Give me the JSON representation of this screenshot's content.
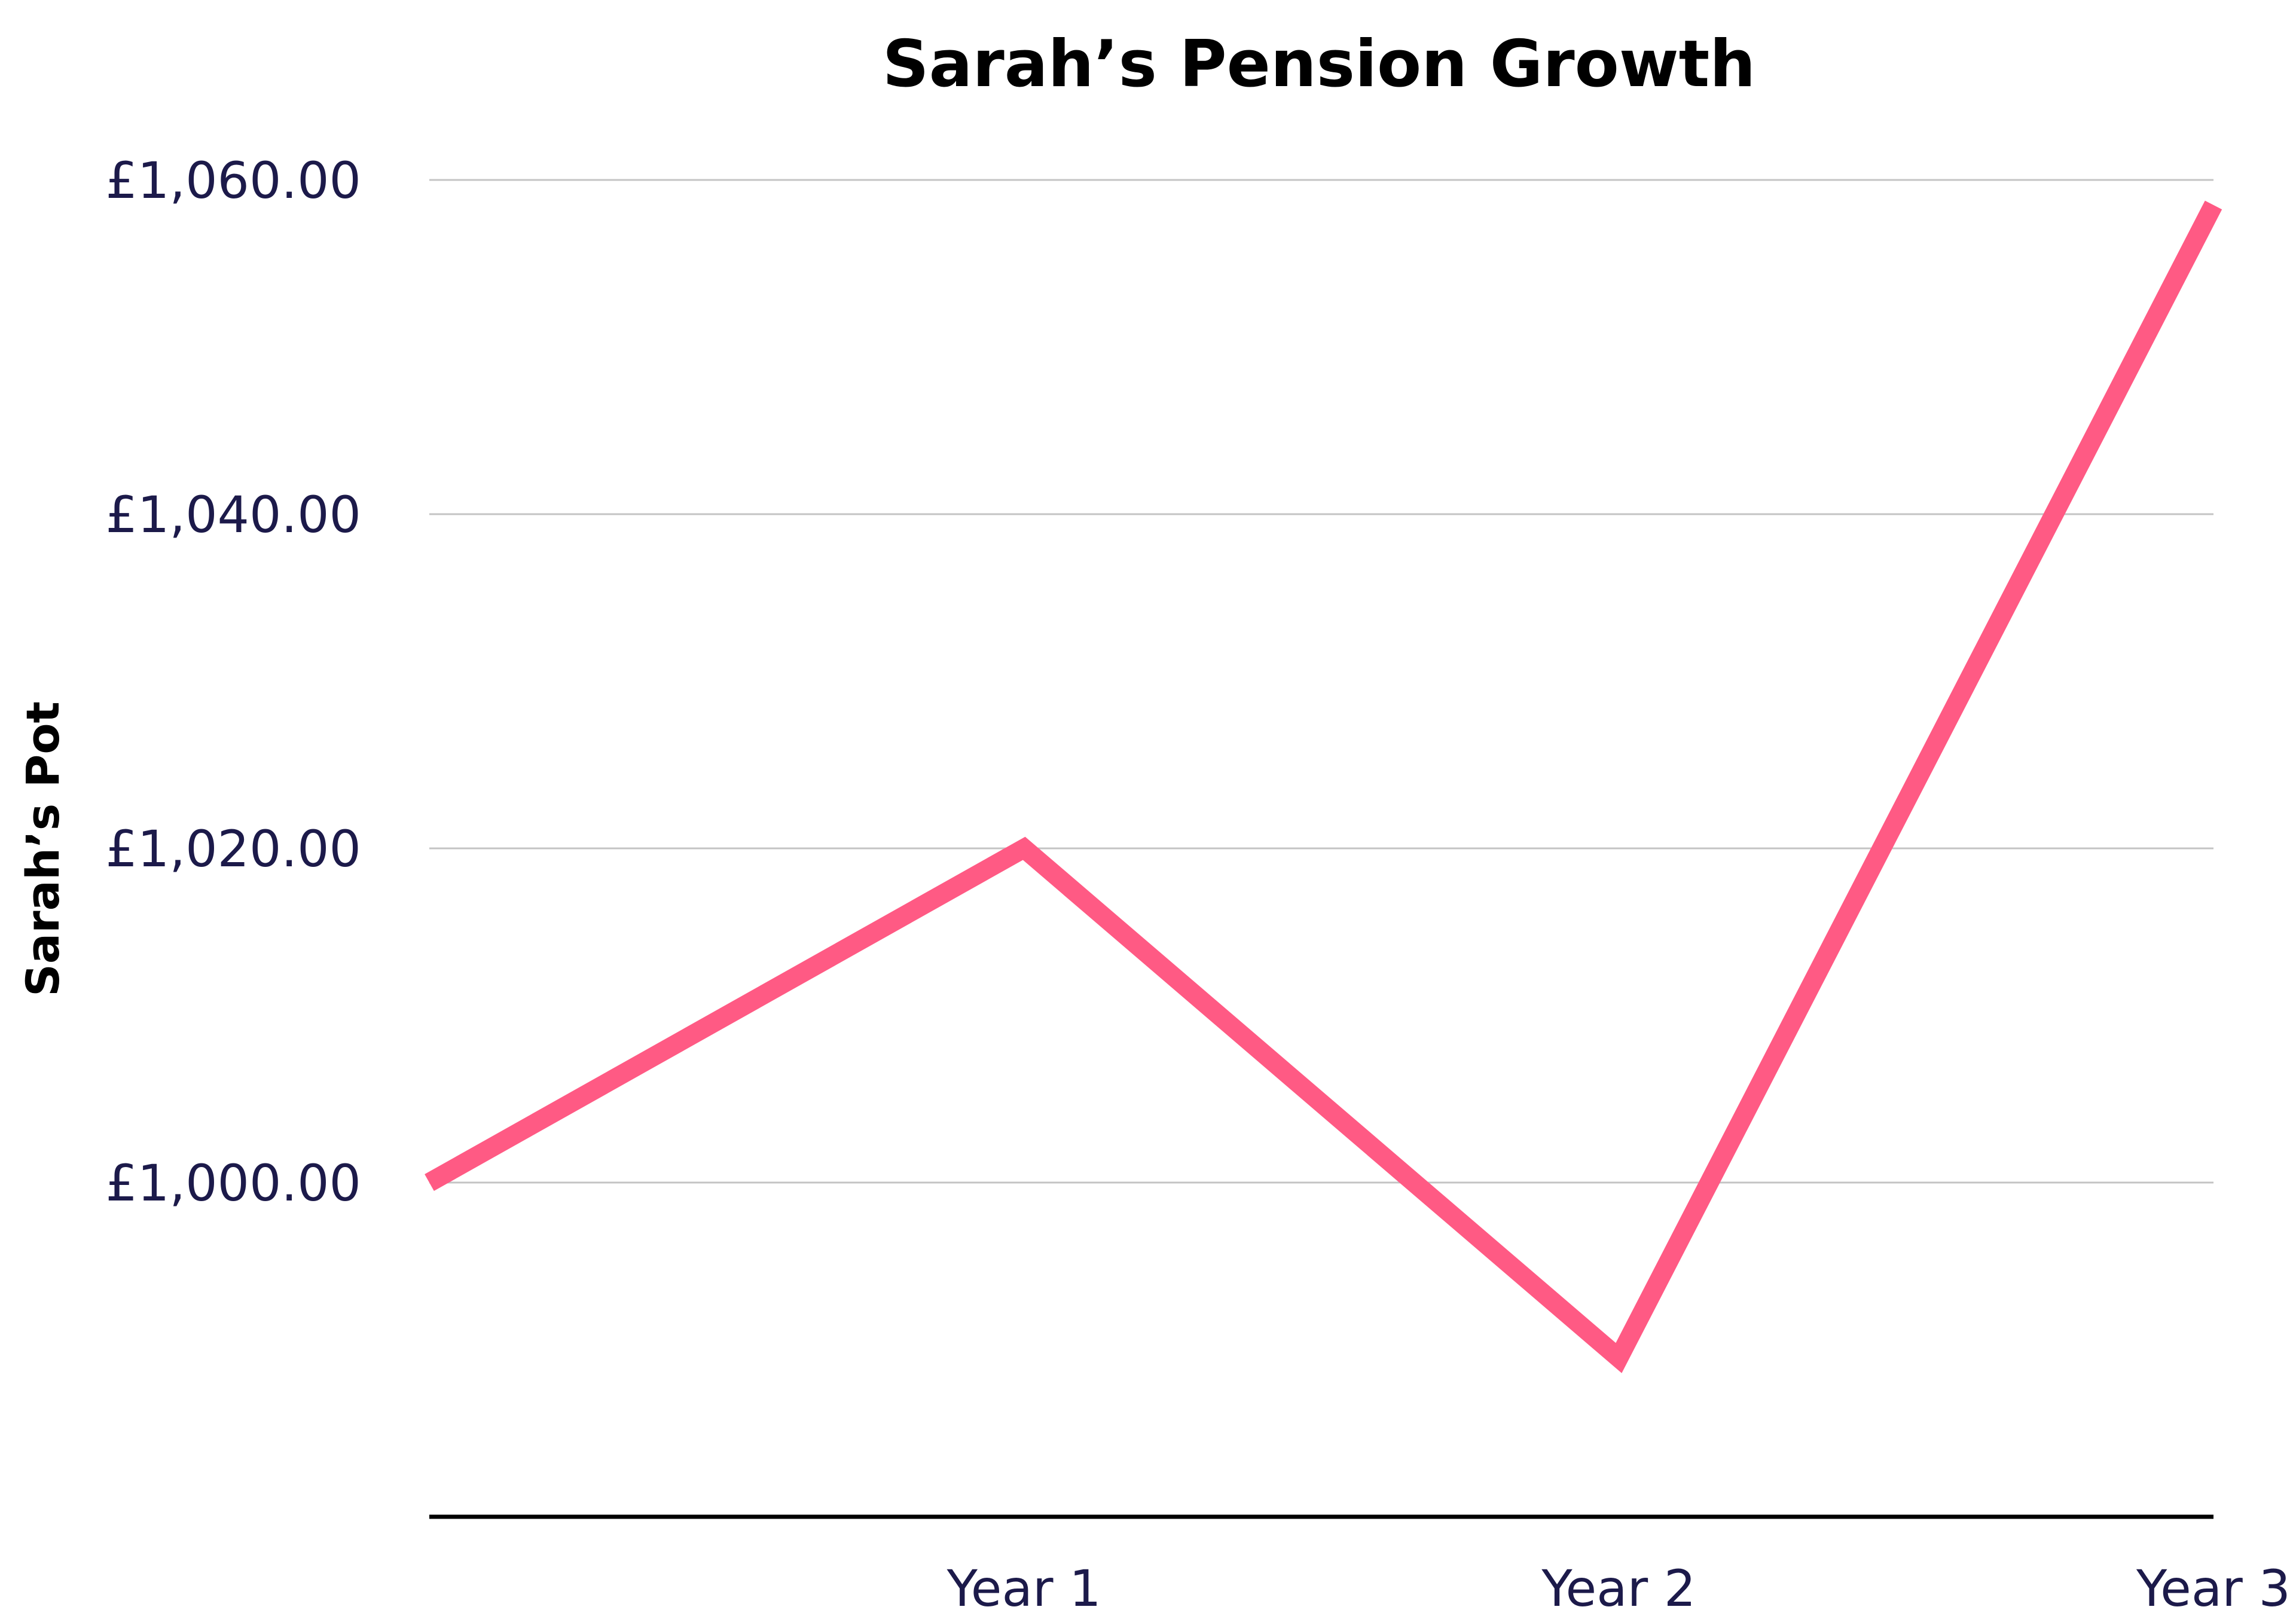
{
  "chart_data": {
    "type": "line",
    "title": "Sarah’s Pension Growth",
    "xlabel": "",
    "ylabel": "Sarah’s Pot",
    "categories": [
      "",
      "Year 1",
      "Year 2",
      "Year 3"
    ],
    "series": [
      {
        "values": [
          1000.0,
          1020.0,
          989.5,
          1058.5
        ],
        "color": "#ff5a84"
      }
    ],
    "y_ticks": [
      1000,
      1020,
      1040,
      1060
    ],
    "y_tick_labels": [
      "£1,000.00",
      "£1,020.00",
      "£1,040.00",
      "£1,060.00"
    ],
    "ylim": [
      980,
      1060
    ],
    "grid": true,
    "legend": "none",
    "colors": {
      "line": "#ff5a84",
      "grid": "#c4c4c4",
      "baseline": "#000000",
      "tick_text": "#1c1a4a",
      "title_text": "#000000"
    }
  }
}
